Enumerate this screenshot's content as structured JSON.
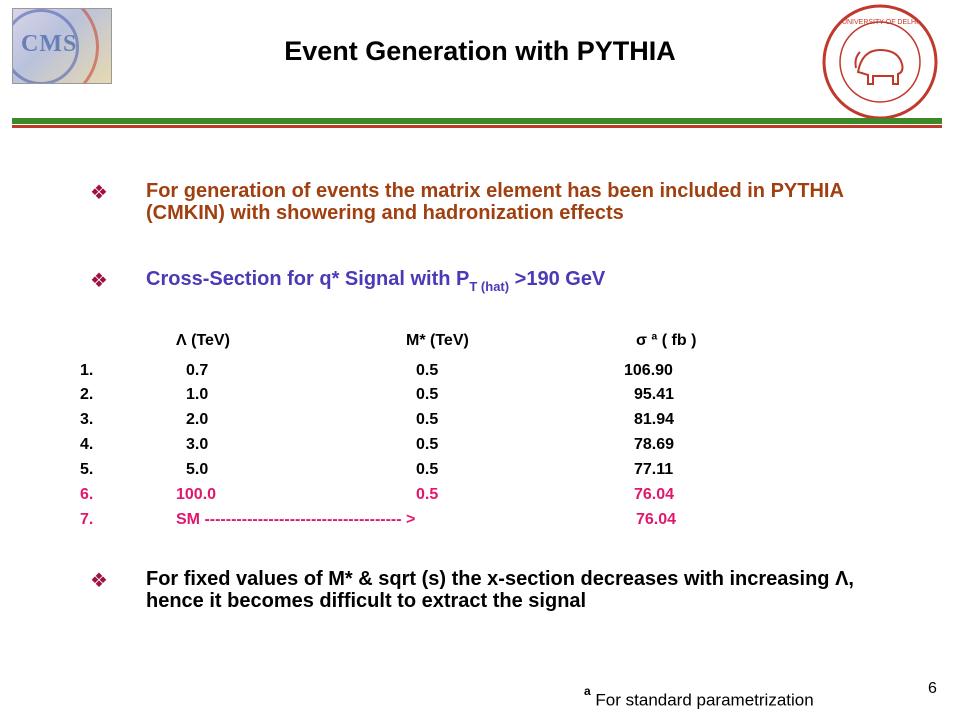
{
  "header": {
    "title": "Event Generation with PYTHIA",
    "cms_logo_text": "CMS",
    "university_logo_text": "UNIVERSITY OF DELHI"
  },
  "bullets": {
    "b1": "For generation of events the matrix element has been included in PYTHIA (CMKIN) with showering and hadronization effects",
    "b2_main": "Cross-Section for q* Signal with P",
    "b2_sub": "T (hat)",
    "b2_tail": " >190 GeV",
    "b3": "For fixed values of M* & sqrt (s) the x-section decreases with increasing Λ, hence it becomes difficult to extract the signal"
  },
  "table": {
    "headers": [
      "Λ (TeV)",
      "M* (TeV)",
      "σ ª ( fb )"
    ],
    "rows": [
      {
        "idx": "1.",
        "lambda": "0.7",
        "mstar": "0.5",
        "sigma": "106.90"
      },
      {
        "idx": "2.",
        "lambda": "1.0",
        "mstar": "0.5",
        "sigma": "95.41"
      },
      {
        "idx": "3.",
        "lambda": "2.0",
        "mstar": "0.5",
        "sigma": "81.94"
      },
      {
        "idx": "4.",
        "lambda": "3.0",
        "mstar": "0.5",
        "sigma": "78.69"
      },
      {
        "idx": "5.",
        "lambda": "5.0",
        "mstar": "0.5",
        "sigma": "77.11"
      },
      {
        "idx": "6.",
        "lambda": "100.0",
        "mstar": "0.5",
        "sigma": "76.04"
      }
    ],
    "sm_row": {
      "idx": "7.",
      "label": "SM ------------------------------------- >",
      "sigma": "76.04"
    }
  },
  "footnote": {
    "mark": "a",
    "text": "For standard parametrization"
  },
  "page_number": "6",
  "colors": {
    "bullet1": "#a04010",
    "bullet2": "#4b3ab6",
    "highlight": "#e0186c",
    "rule_green": "#3a8a2a",
    "rule_red": "#c0392b"
  }
}
